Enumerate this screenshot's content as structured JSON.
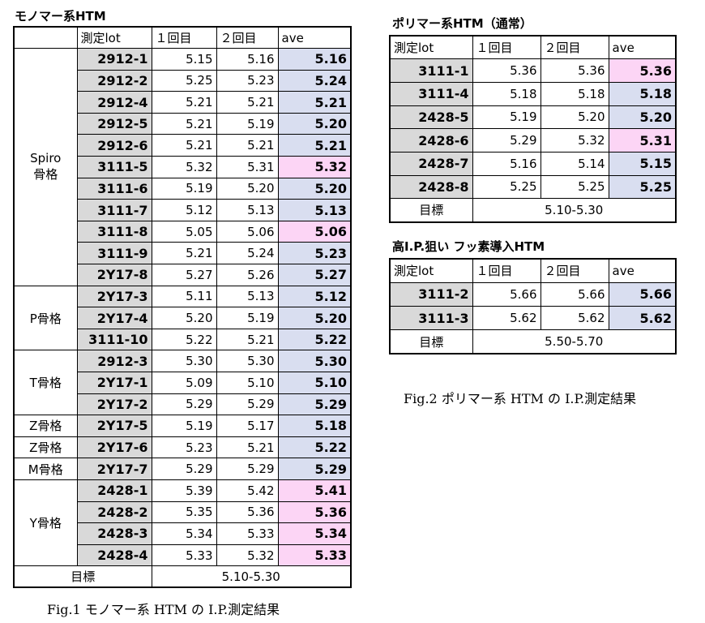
{
  "table1": {
    "title": "モノマー系HTM",
    "headers": [
      "",
      "測定lot",
      "１回目",
      "２回目",
      "ave"
    ],
    "groups": [
      {
        "label": "Spiro\n骨格",
        "rows": [
          {
            "lot": "2912-1",
            "r1": "5.15",
            "r2": "5.16",
            "ave": "5.16",
            "color": "blue"
          },
          {
            "lot": "2912-2",
            "r1": "5.25",
            "r2": "5.23",
            "ave": "5.24",
            "color": "blue"
          },
          {
            "lot": "2912-4",
            "r1": "5.21",
            "r2": "5.21",
            "ave": "5.21",
            "color": "blue"
          },
          {
            "lot": "2912-5",
            "r1": "5.21",
            "r2": "5.19",
            "ave": "5.20",
            "color": "blue"
          },
          {
            "lot": "2912-6",
            "r1": "5.21",
            "r2": "5.21",
            "ave": "5.21",
            "color": "blue"
          },
          {
            "lot": "3111-5",
            "r1": "5.32",
            "r2": "5.31",
            "ave": "5.32",
            "color": "pink"
          },
          {
            "lot": "3111-6",
            "r1": "5.19",
            "r2": "5.20",
            "ave": "5.20",
            "color": "blue"
          },
          {
            "lot": "3111-7",
            "r1": "5.12",
            "r2": "5.13",
            "ave": "5.13",
            "color": "blue"
          },
          {
            "lot": "3111-8",
            "r1": "5.05",
            "r2": "5.06",
            "ave": "5.06",
            "color": "pink"
          },
          {
            "lot": "3111-9",
            "r1": "5.21",
            "r2": "5.24",
            "ave": "5.23",
            "color": "blue"
          },
          {
            "lot": "2Y17-8",
            "r1": "5.27",
            "r2": "5.26",
            "ave": "5.27",
            "color": "blue"
          }
        ]
      },
      {
        "label": "P骨格",
        "rows": [
          {
            "lot": "2Y17-3",
            "r1": "5.11",
            "r2": "5.13",
            "ave": "5.12",
            "color": "blue"
          },
          {
            "lot": "2Y17-4",
            "r1": "5.20",
            "r2": "5.19",
            "ave": "5.20",
            "color": "blue"
          },
          {
            "lot": "3111-10",
            "r1": "5.22",
            "r2": "5.21",
            "ave": "5.22",
            "color": "blue"
          }
        ]
      },
      {
        "label": "T骨格",
        "rows": [
          {
            "lot": "2912-3",
            "r1": "5.30",
            "r2": "5.30",
            "ave": "5.30",
            "color": "blue"
          },
          {
            "lot": "2Y17-1",
            "r1": "5.09",
            "r2": "5.10",
            "ave": "5.10",
            "color": "blue"
          },
          {
            "lot": "2Y17-2",
            "r1": "5.29",
            "r2": "5.29",
            "ave": "5.29",
            "color": "blue"
          }
        ]
      },
      {
        "label": "Z骨格",
        "rows": [
          {
            "lot": "2Y17-5",
            "r1": "5.19",
            "r2": "5.17",
            "ave": "5.18",
            "color": "blue"
          }
        ]
      },
      {
        "label": "Z骨格",
        "rows": [
          {
            "lot": "2Y17-6",
            "r1": "5.23",
            "r2": "5.21",
            "ave": "5.22",
            "color": "blue"
          }
        ]
      },
      {
        "label": "M骨格",
        "rows": [
          {
            "lot": "2Y17-7",
            "r1": "5.29",
            "r2": "5.29",
            "ave": "5.29",
            "color": "blue"
          }
        ]
      },
      {
        "label": "Y骨格",
        "rows": [
          {
            "lot": "2428-1",
            "r1": "5.39",
            "r2": "5.42",
            "ave": "5.41",
            "color": "pink"
          },
          {
            "lot": "2428-2",
            "r1": "5.35",
            "r2": "5.36",
            "ave": "5.36",
            "color": "pink"
          },
          {
            "lot": "2428-3",
            "r1": "5.34",
            "r2": "5.33",
            "ave": "5.34",
            "color": "pink"
          },
          {
            "lot": "2428-4",
            "r1": "5.33",
            "r2": "5.32",
            "ave": "5.33",
            "color": "pink"
          }
        ]
      }
    ],
    "target_label": "目標",
    "target_value": "5.10-5.30",
    "caption": "Fig.1  モノマー系 HTM の I.P.測定結果"
  },
  "table2": {
    "title": "ポリマー系HTM（通常）",
    "headers": [
      "測定lot",
      "１回目",
      "２回目",
      "ave"
    ],
    "rows": [
      {
        "lot": "3111-1",
        "r1": "5.36",
        "r2": "5.36",
        "ave": "5.36",
        "color": "pink"
      },
      {
        "lot": "3111-4",
        "r1": "5.18",
        "r2": "5.18",
        "ave": "5.18",
        "color": "blue"
      },
      {
        "lot": "2428-5",
        "r1": "5.19",
        "r2": "5.20",
        "ave": "5.20",
        "color": "blue"
      },
      {
        "lot": "2428-6",
        "r1": "5.29",
        "r2": "5.32",
        "ave": "5.31",
        "color": "pink"
      },
      {
        "lot": "2428-7",
        "r1": "5.16",
        "r2": "5.14",
        "ave": "5.15",
        "color": "blue"
      },
      {
        "lot": "2428-8",
        "r1": "5.25",
        "r2": "5.25",
        "ave": "5.25",
        "color": "blue"
      }
    ],
    "target_label": "目標",
    "target_value": "5.10-5.30"
  },
  "table3": {
    "title": "高I.P.狙い フッ素導入HTM",
    "headers": [
      "測定lot",
      "１回目",
      "２回目",
      "ave"
    ],
    "rows": [
      {
        "lot": "3111-2",
        "r1": "5.66",
        "r2": "5.66",
        "ave": "5.66",
        "color": "blue"
      },
      {
        "lot": "3111-3",
        "r1": "5.62",
        "r2": "5.62",
        "ave": "5.62",
        "color": "blue"
      }
    ],
    "target_label": "目標",
    "target_value": "5.50-5.70"
  },
  "caption2": "Fig.2  ポリマー系 HTM の I.P.測定結果",
  "colors": {
    "blue": "#d9def0",
    "pink": "#fcd5f5",
    "lot_bg": "#d9d9d9"
  }
}
